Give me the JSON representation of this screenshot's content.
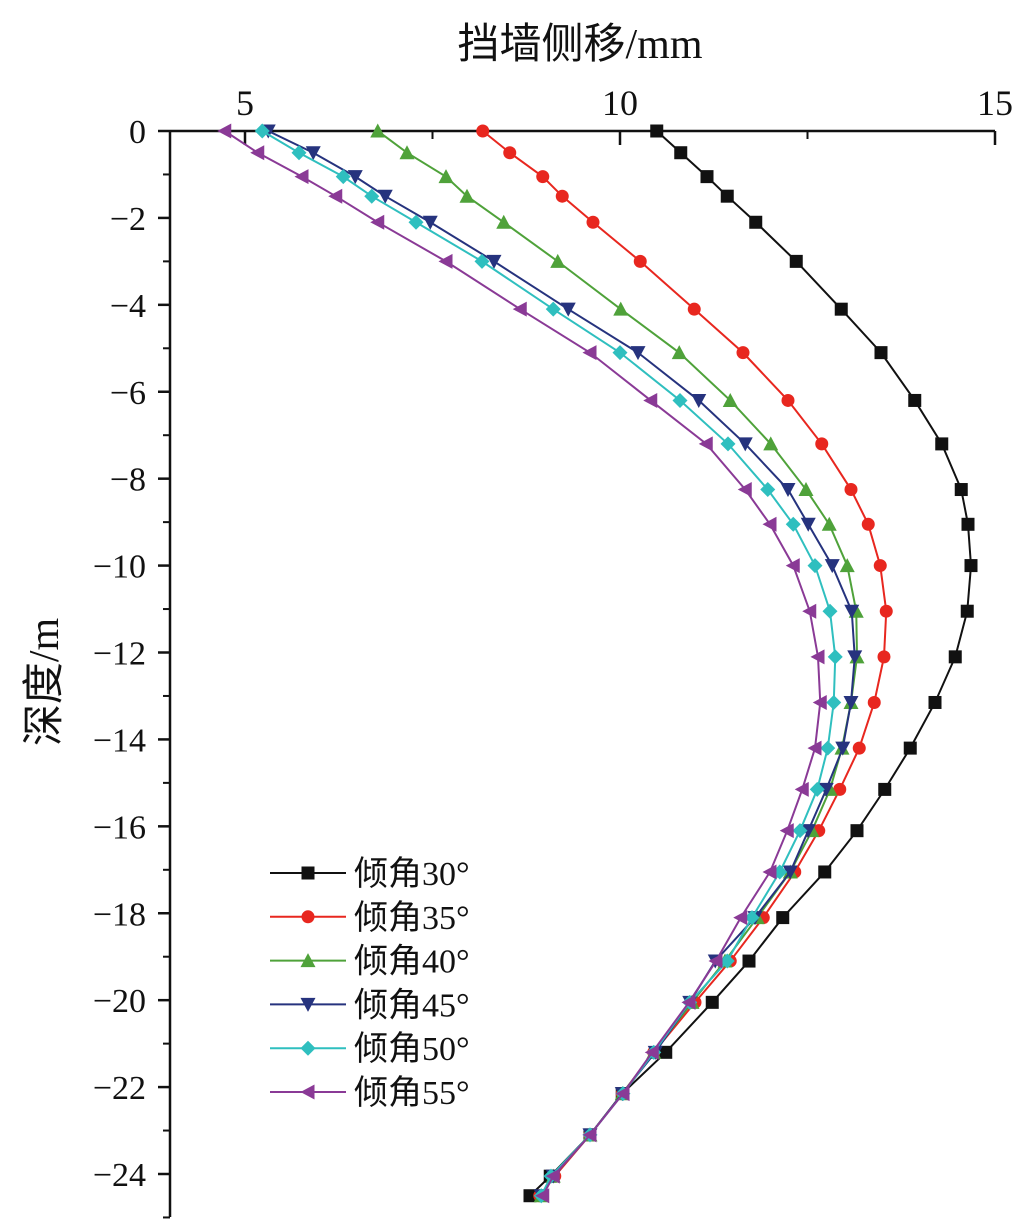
{
  "chart_data": {
    "type": "line",
    "title": "",
    "xlabel": "挡墙侧移/mm",
    "ylabel": "深度/m",
    "xlim": [
      4,
      15
    ],
    "ylim": [
      -25,
      0
    ],
    "x_ticks": [
      5,
      10,
      15
    ],
    "y_ticks": [
      0,
      -2,
      -4,
      -6,
      -8,
      -10,
      -12,
      -14,
      -16,
      -18,
      -20,
      -22,
      -24
    ],
    "y_tick_labels": [
      "0",
      "−2",
      "−4",
      "−6",
      "−8",
      "−10",
      "−12",
      "−14",
      "−16",
      "−18",
      "−20",
      "−22",
      "−24"
    ],
    "x_axis_position": "top",
    "grid": false,
    "legend_position": "bottom-left",
    "depth": [
      0,
      -0.5,
      -1.05,
      -1.5,
      -2.1,
      -3,
      -4.1,
      -5.1,
      -6.2,
      -7.2,
      -8.25,
      -9.05,
      -10,
      -11.05,
      -12.1,
      -13.15,
      -14.2,
      -15.15,
      -16.1,
      -17.05,
      -18.1,
      -19.1,
      -20.05,
      -21.2,
      -22.15,
      -23.1,
      -24.05,
      -24.5
    ],
    "series": [
      {
        "name": "倾角30°",
        "color": "#111111",
        "marker": "square",
        "values": [
          10.49,
          10.81,
          11.16,
          11.43,
          11.81,
          12.35,
          12.95,
          13.48,
          13.93,
          14.29,
          14.55,
          14.64,
          14.68,
          14.63,
          14.47,
          14.2,
          13.87,
          13.53,
          13.16,
          12.73,
          12.17,
          11.72,
          11.23,
          10.61,
          10.03,
          9.6,
          9.07,
          8.8
        ]
      },
      {
        "name": "倾角35°",
        "color": "#e8271f",
        "marker": "circle",
        "values": [
          8.17,
          8.53,
          8.97,
          9.23,
          9.64,
          10.27,
          10.99,
          11.64,
          12.24,
          12.69,
          13.08,
          13.31,
          13.47,
          13.55,
          13.52,
          13.39,
          13.19,
          12.93,
          12.65,
          12.33,
          11.91,
          11.47,
          11.0,
          10.45,
          10.03,
          9.6,
          9.13,
          8.93
        ]
      },
      {
        "name": "倾角40°",
        "color": "#4fa23a",
        "marker": "triangle-up",
        "values": [
          6.77,
          7.16,
          7.68,
          7.96,
          8.45,
          9.17,
          10.01,
          10.79,
          11.47,
          12.01,
          12.48,
          12.79,
          13.03,
          13.15,
          13.16,
          13.08,
          12.96,
          12.8,
          12.56,
          12.27,
          11.83,
          11.4,
          10.96,
          10.45,
          10.03,
          9.6,
          9.11,
          8.95
        ]
      },
      {
        "name": "倾角45°",
        "color": "#26337e",
        "marker": "triangle-down",
        "values": [
          5.31,
          5.91,
          6.47,
          6.87,
          7.47,
          8.32,
          9.31,
          10.24,
          11.05,
          11.67,
          12.24,
          12.51,
          12.83,
          13.09,
          13.13,
          13.08,
          12.97,
          12.75,
          12.51,
          12.27,
          11.8,
          11.27,
          10.93,
          10.47,
          10.03,
          9.6,
          9.11,
          8.95
        ]
      },
      {
        "name": "倾角50°",
        "color": "#2fbfbf",
        "marker": "diamond",
        "values": [
          5.23,
          5.72,
          6.31,
          6.69,
          7.28,
          8.16,
          9.11,
          10.0,
          10.8,
          11.44,
          11.97,
          12.31,
          12.6,
          12.8,
          12.87,
          12.85,
          12.77,
          12.63,
          12.4,
          12.13,
          11.76,
          11.43,
          10.93,
          10.45,
          10.04,
          9.6,
          9.08,
          8.95
        ]
      },
      {
        "name": "倾角55°",
        "color": "#8a3a96",
        "marker": "triangle-left",
        "values": [
          4.73,
          5.17,
          5.76,
          6.21,
          6.77,
          7.68,
          8.67,
          9.6,
          10.41,
          11.15,
          11.67,
          12.0,
          12.31,
          12.53,
          12.64,
          12.67,
          12.6,
          12.43,
          12.23,
          12.0,
          11.61,
          11.28,
          10.92,
          10.43,
          10.04,
          9.6,
          9.11,
          8.97
        ]
      }
    ]
  }
}
